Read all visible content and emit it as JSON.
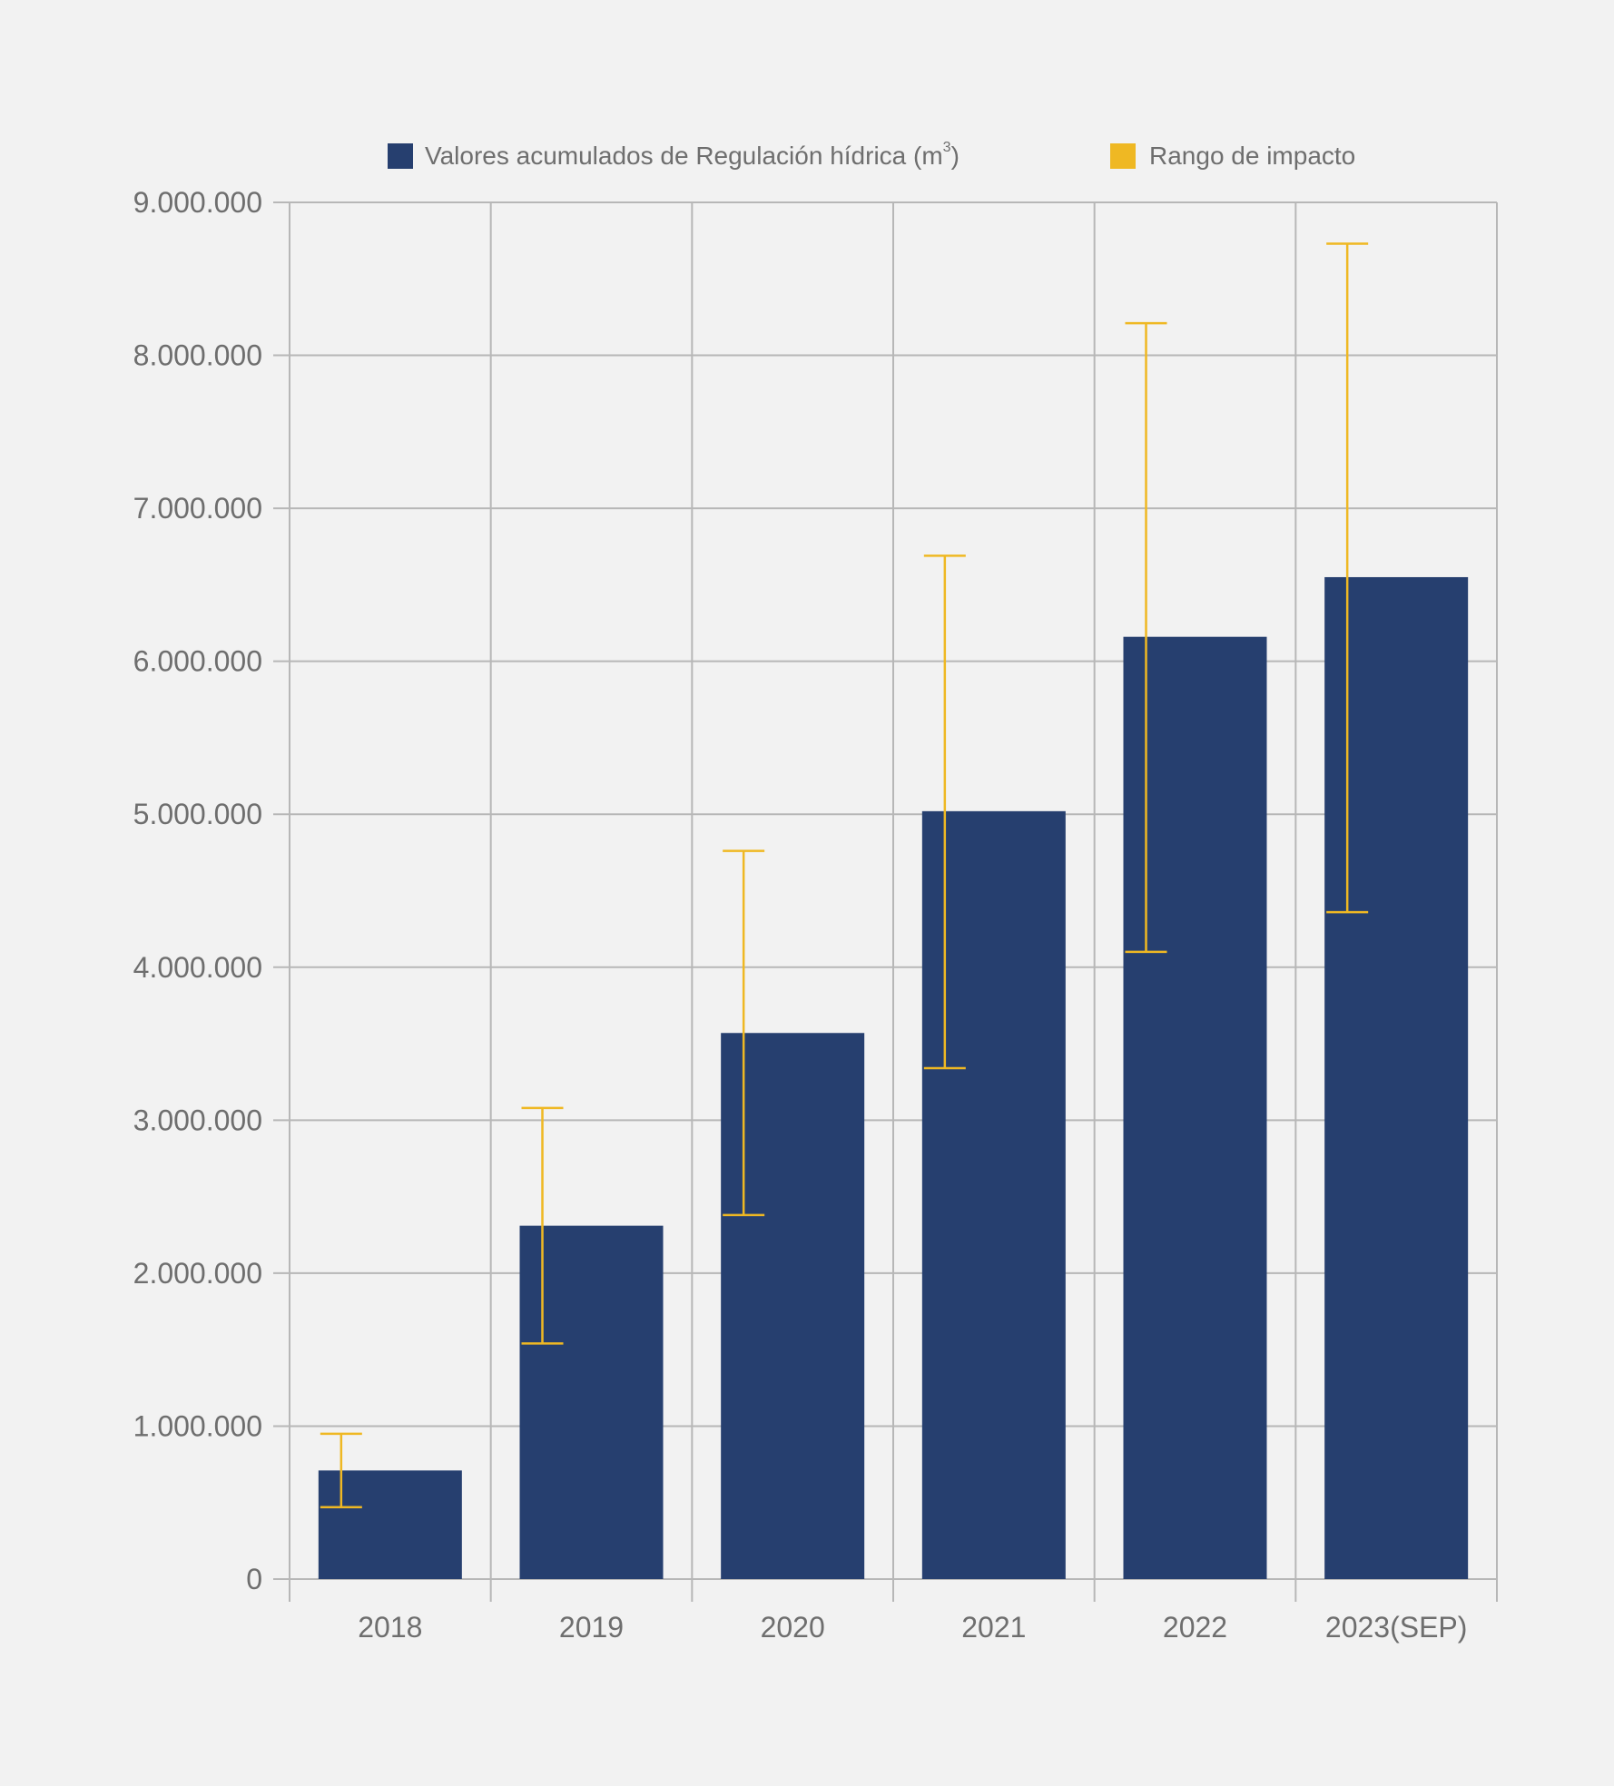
{
  "chart_data": {
    "type": "bar",
    "categories": [
      "2018",
      "2019",
      "2020",
      "2021",
      "2022",
      "2023(SEP)"
    ],
    "series": [
      {
        "name": "Valores acumulados de Regulación hídrica (m3)",
        "values": [
          710000,
          2310000,
          3570000,
          5020000,
          6160000,
          6550000
        ],
        "color": "#263f6f"
      }
    ],
    "error_range": {
      "name": "Rango de impacto",
      "color": "#efb823",
      "low": [
        470000,
        1540000,
        2380000,
        3340000,
        4100000,
        4360000
      ],
      "high": [
        950000,
        3080000,
        4760000,
        6690000,
        8210000,
        8730000
      ]
    },
    "legend": {
      "position": "top-center",
      "series_label_base": "Valores acumulados de Regulación hídrica (m",
      "series_label_sup": "3",
      "series_label_end": ")",
      "range_label": "Rango de impacto"
    },
    "y_ticks": [
      "0",
      "1.000.000",
      "2.000.000",
      "3.000.000",
      "4.000.000",
      "5.000.000",
      "6.000.000",
      "7.000.000",
      "8.000.000",
      "9.000.000"
    ],
    "ylim": [
      0,
      9000000
    ],
    "grid": true
  }
}
